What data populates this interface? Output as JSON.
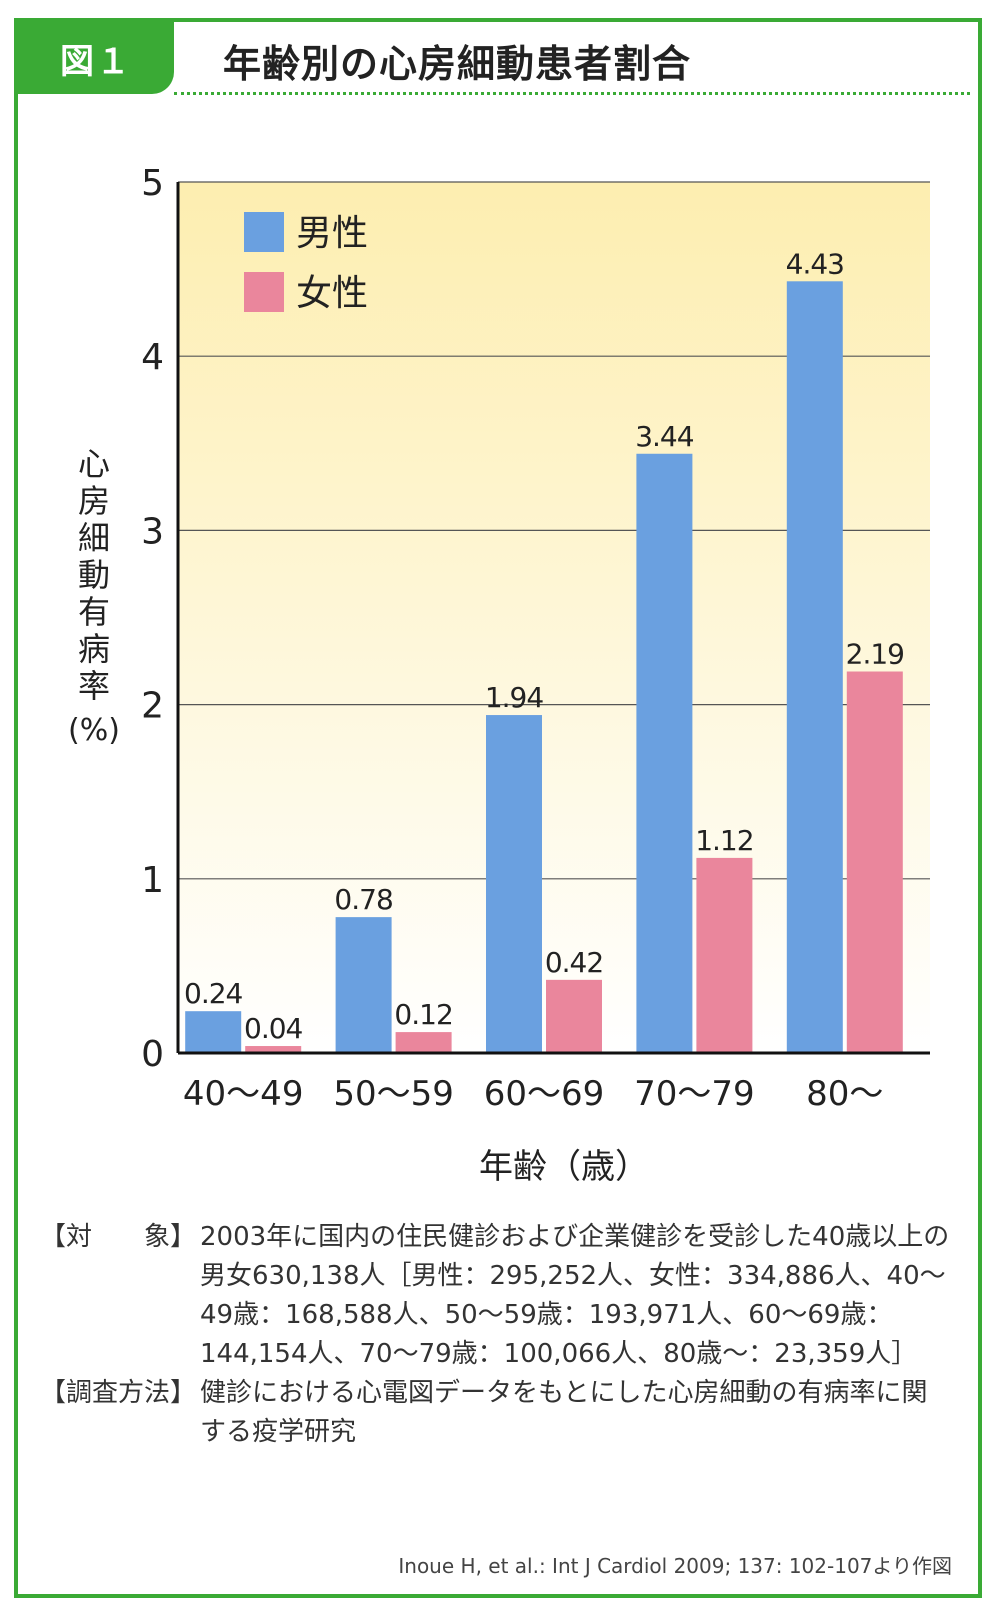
{
  "figure": {
    "label": "図１",
    "title": "年齢別の心房細動患者割合"
  },
  "colors": {
    "frame": "#3aaa35",
    "male": "#6aa0e0",
    "female": "#ea869c",
    "plot_bg_top": "#fdeeb0",
    "plot_bg_bottom": "#ffffff"
  },
  "chart_data": {
    "type": "bar",
    "categories": [
      "40～49",
      "50～59",
      "60～69",
      "70～79",
      "80～"
    ],
    "series": [
      {
        "name": "男性",
        "values": [
          0.24,
          0.78,
          1.94,
          3.44,
          4.43
        ]
      },
      {
        "name": "女性",
        "values": [
          0.04,
          0.12,
          0.42,
          1.12,
          2.19
        ]
      }
    ],
    "data_labels": [
      [
        "0.24",
        "0.78",
        "1.94",
        "3.44",
        "4.43"
      ],
      [
        "0.04",
        "0.12",
        "0.42",
        "1.12",
        "2.19"
      ]
    ],
    "xlabel": "年齢（歳）",
    "ylabel": "心房細動有病率(%)",
    "ylim": [
      0,
      5
    ],
    "yticks": [
      "0",
      "1",
      "2",
      "3",
      "4",
      "5"
    ],
    "grid": true,
    "legend": "top-left"
  },
  "notes": [
    {
      "label": "【対　　象】",
      "text": "2003年に国内の住民健診および企業健診を受診した40歳以上の男女630,138人［男性：295,252人、女性：334,886人、40～49歳：168,588人、50～59歳：193,971人、60～69歳：144,154人、70～79歳：100,066人、80歳～：23,359人］"
    },
    {
      "label": "【調査方法】",
      "text": "健診における心電図データをもとにした心房細動の有病率に関する疫学研究"
    }
  ],
  "citation": "Inoue H, et al.: Int J Cardiol 2009; 137: 102-107より作図"
}
